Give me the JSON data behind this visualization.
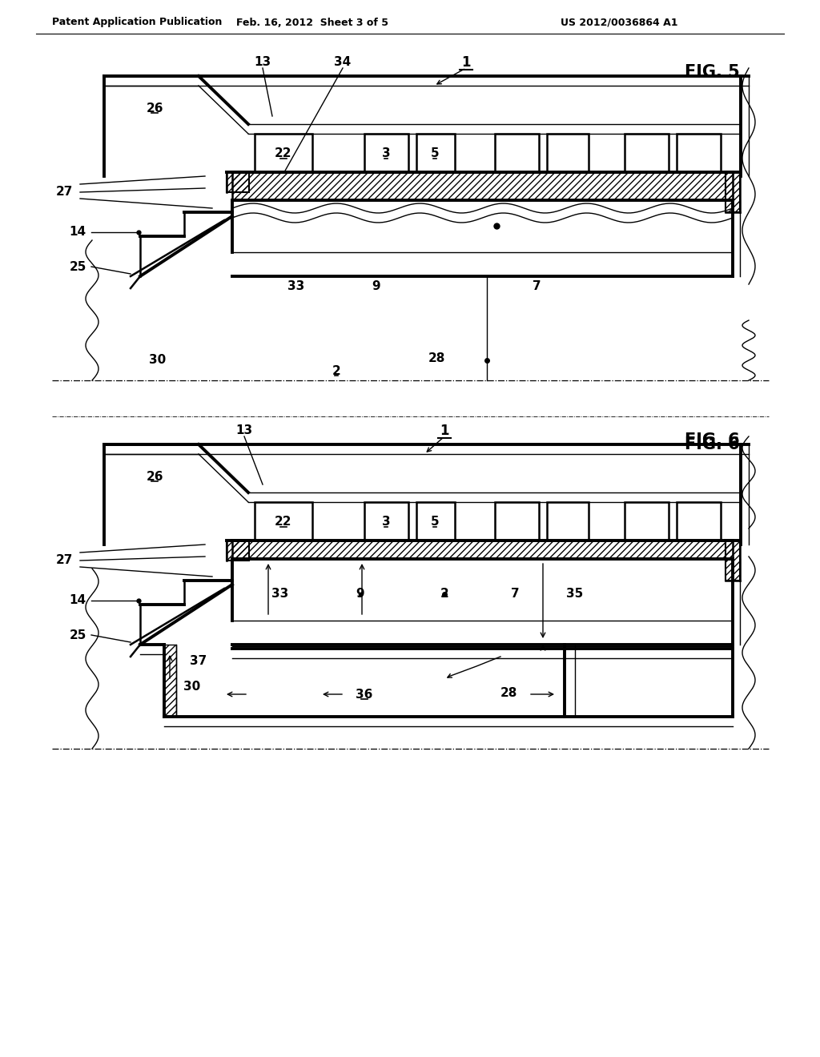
{
  "background": "#ffffff",
  "black": "#000000",
  "header_left": "Patent Application Publication",
  "header_mid": "Feb. 16, 2012  Sheet 3 of 5",
  "header_right": "US 2012/0036864 A1",
  "fig5": "FIG. 5",
  "fig6": "FIG. 6"
}
